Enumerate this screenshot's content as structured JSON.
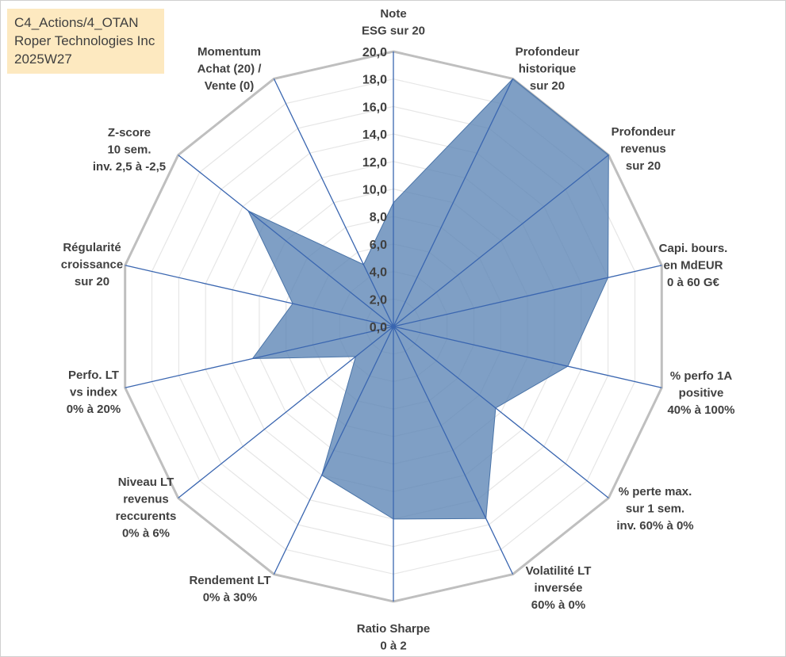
{
  "title_box": {
    "line1": "C4_Actions/4_OTAN",
    "line2": "Roper Technologies Inc",
    "line3": "2025W27"
  },
  "chart_data": {
    "type": "radar",
    "rmin": 0,
    "rmax": 20,
    "tick_step": 2,
    "tick_labels": [
      "0,0",
      "2,0",
      "4,0",
      "6,0",
      "8,0",
      "10,0",
      "12,0",
      "14,0",
      "16,0",
      "18,0",
      "20,0"
    ],
    "grid": true,
    "axes": [
      {
        "label": [
          "Note",
          "ESG sur 20"
        ],
        "value": 9.0
      },
      {
        "label": [
          "Profondeur",
          "historique",
          "sur 20"
        ],
        "value": 20.0
      },
      {
        "label": [
          "Profondeur",
          "revenus",
          "sur 20"
        ],
        "value": 20.0
      },
      {
        "label": [
          "Capi. bours.",
          "en MdEUR",
          "0 à 60 G€"
        ],
        "value": 16.0
      },
      {
        "label": [
          "% perfo 1A",
          "positive",
          "40% à 100%"
        ],
        "value": 13.0
      },
      {
        "label": [
          "% perte max.",
          "sur 1 sem.",
          "inv. 60% à 0%"
        ],
        "value": 9.5
      },
      {
        "label": [
          "Volatilité LT",
          "inversée",
          "60% à 0%"
        ],
        "value": 15.5
      },
      {
        "label": [
          "Ratio Sharpe",
          "0 à 2"
        ],
        "value": 14.0
      },
      {
        "label": [
          "Rendement LT",
          "0% à 30%"
        ],
        "value": 12.0
      },
      {
        "label": [
          "Niveau LT",
          "revenus",
          "reccurents",
          "0% à 6%"
        ],
        "value": 3.5
      },
      {
        "label": [
          "Perfo. LT",
          "vs index",
          "0% à 20%"
        ],
        "value": 10.5
      },
      {
        "label": [
          "Régularité",
          "croissance",
          "sur 20"
        ],
        "value": 7.5
      },
      {
        "label": [
          "Z-score",
          "10 sem.",
          "inv. 2,5 à -2,5"
        ],
        "value": 13.5
      },
      {
        "label": [
          "Momentum",
          "Achat (20) /",
          "Vente (0)"
        ],
        "value": 5.0
      }
    ],
    "colors": {
      "fill": "#5b84b5",
      "stroke": "#4a74a8",
      "spoke": "#3a66b0",
      "grid_major": "#bfbfbf",
      "grid_minor": "#e6e6e6",
      "text": "#404040",
      "title_box_bg": "#fde9c0"
    }
  }
}
